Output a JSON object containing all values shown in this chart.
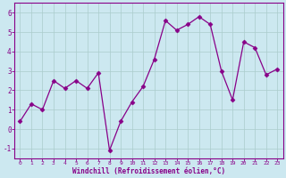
{
  "x": [
    0,
    1,
    2,
    3,
    4,
    5,
    6,
    7,
    8,
    9,
    10,
    11,
    12,
    13,
    14,
    15,
    16,
    17,
    18,
    19,
    20,
    21,
    22,
    23
  ],
  "y": [
    0.4,
    1.3,
    1.0,
    2.5,
    2.1,
    2.5,
    2.1,
    2.9,
    -1.1,
    0.4,
    1.4,
    2.2,
    3.6,
    5.6,
    5.1,
    5.4,
    5.8,
    5.4,
    3.0,
    1.5,
    4.5,
    4.2,
    2.8,
    3.1
  ],
  "line_color": "#880088",
  "marker": "D",
  "marker_size": 2.5,
  "bg_color": "#cce8f0",
  "grid_color": "#aacccc",
  "xlabel": "Windchill (Refroidissement éolien,°C)",
  "xlabel_color": "#880088",
  "tick_color": "#880088",
  "spine_color": "#880088",
  "ylim": [
    -1.5,
    6.5
  ],
  "xlim": [
    -0.5,
    23.5
  ],
  "yticks": [
    -1,
    0,
    1,
    2,
    3,
    4,
    5,
    6
  ],
  "xticks": [
    0,
    1,
    2,
    3,
    4,
    5,
    6,
    7,
    8,
    9,
    10,
    11,
    12,
    13,
    14,
    15,
    16,
    17,
    18,
    19,
    20,
    21,
    22,
    23
  ]
}
